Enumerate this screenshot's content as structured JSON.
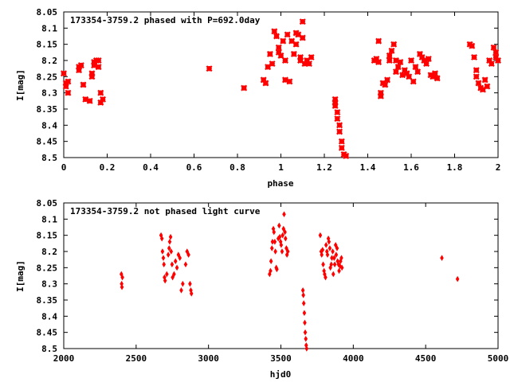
{
  "chart_data": [
    {
      "type": "scatter",
      "title": "173354-3759.2 phased with P=692.0day",
      "xlabel": "phase",
      "ylabel": "I[mag]",
      "xlim": [
        0,
        2
      ],
      "ylim": [
        8.05,
        8.5
      ],
      "y_inverted": true,
      "xticks": [
        0,
        0.2,
        0.4,
        0.6,
        0.8,
        1,
        1.2,
        1.4,
        1.6,
        1.8,
        2
      ],
      "xtick_labels": [
        "0",
        "0.2",
        "0.4",
        "0.6",
        "0.8",
        "1",
        "1.2",
        "1.4",
        "1.6",
        "1.8",
        "2"
      ],
      "yticks": [
        8.05,
        8.1,
        8.15,
        8.2,
        8.25,
        8.3,
        8.35,
        8.4,
        8.45,
        8.5
      ],
      "ytick_labels": [
        "8.05",
        "8.1",
        "8.15",
        "8.2",
        "8.25",
        "8.3",
        "8.35",
        "8.4",
        "8.45",
        "8.5"
      ],
      "grid": false,
      "marker_color": "#ff0000",
      "series": [
        {
          "points": [
            [
              0.0,
              8.24
            ],
            [
              0.01,
              8.27
            ],
            [
              0.02,
              8.265
            ],
            [
              0.01,
              8.28
            ],
            [
              0.02,
              8.3
            ],
            [
              0.07,
              8.22
            ],
            [
              0.08,
              8.215
            ],
            [
              0.07,
              8.23
            ],
            [
              0.09,
              8.275
            ],
            [
              0.1,
              8.32
            ],
            [
              0.12,
              8.325
            ],
            [
              0.13,
              8.25
            ],
            [
              0.13,
              8.24
            ],
            [
              0.14,
              8.205
            ],
            [
              0.14,
              8.215
            ],
            [
              0.15,
              8.2
            ],
            [
              0.16,
              8.2
            ],
            [
              0.16,
              8.22
            ],
            [
              0.17,
              8.3
            ],
            [
              0.17,
              8.33
            ],
            [
              0.18,
              8.32
            ],
            [
              0.67,
              8.225
            ],
            [
              0.83,
              8.285
            ],
            [
              0.92,
              8.26
            ],
            [
              0.93,
              8.27
            ],
            [
              0.94,
              8.22
            ],
            [
              0.95,
              8.18
            ],
            [
              0.96,
              8.21
            ],
            [
              0.97,
              8.11
            ],
            [
              0.98,
              8.125
            ],
            [
              0.99,
              8.16
            ],
            [
              0.99,
              8.175
            ],
            [
              1.0,
              8.185
            ],
            [
              1.01,
              8.14
            ],
            [
              1.02,
              8.2
            ],
            [
              1.02,
              8.26
            ],
            [
              1.03,
              8.12
            ],
            [
              1.04,
              8.265
            ],
            [
              1.05,
              8.14
            ],
            [
              1.06,
              8.18
            ],
            [
              1.07,
              8.115
            ],
            [
              1.07,
              8.15
            ],
            [
              1.08,
              8.12
            ],
            [
              1.09,
              8.19
            ],
            [
              1.09,
              8.2
            ],
            [
              1.1,
              8.08
            ],
            [
              1.1,
              8.13
            ],
            [
              1.11,
              8.21
            ],
            [
              1.12,
              8.2
            ],
            [
              1.13,
              8.21
            ],
            [
              1.14,
              8.19
            ],
            [
              1.25,
              8.32
            ],
            [
              1.25,
              8.33
            ],
            [
              1.25,
              8.34
            ],
            [
              1.26,
              8.36
            ],
            [
              1.26,
              8.38
            ],
            [
              1.27,
              8.4
            ],
            [
              1.27,
              8.42
            ],
            [
              1.28,
              8.45
            ],
            [
              1.28,
              8.47
            ],
            [
              1.29,
              8.49
            ],
            [
              1.3,
              8.495
            ],
            [
              1.43,
              8.2
            ],
            [
              1.44,
              8.195
            ],
            [
              1.45,
              8.14
            ],
            [
              1.45,
              8.205
            ],
            [
              1.46,
              8.31
            ],
            [
              1.46,
              8.3
            ],
            [
              1.47,
              8.27
            ],
            [
              1.48,
              8.275
            ],
            [
              1.49,
              8.26
            ],
            [
              1.5,
              8.2
            ],
            [
              1.5,
              8.185
            ],
            [
              1.51,
              8.17
            ],
            [
              1.52,
              8.15
            ],
            [
              1.53,
              8.2
            ],
            [
              1.53,
              8.235
            ],
            [
              1.54,
              8.22
            ],
            [
              1.55,
              8.205
            ],
            [
              1.56,
              8.245
            ],
            [
              1.57,
              8.23
            ],
            [
              1.58,
              8.24
            ],
            [
              1.59,
              8.25
            ],
            [
              1.6,
              8.2
            ],
            [
              1.61,
              8.265
            ],
            [
              1.62,
              8.22
            ],
            [
              1.63,
              8.235
            ],
            [
              1.64,
              8.18
            ],
            [
              1.65,
              8.19
            ],
            [
              1.66,
              8.2
            ],
            [
              1.67,
              8.21
            ],
            [
              1.68,
              8.195
            ],
            [
              1.69,
              8.245
            ],
            [
              1.7,
              8.25
            ],
            [
              1.71,
              8.24
            ],
            [
              1.72,
              8.255
            ],
            [
              1.87,
              8.15
            ],
            [
              1.88,
              8.155
            ],
            [
              1.89,
              8.19
            ],
            [
              1.9,
              8.23
            ],
            [
              1.9,
              8.25
            ],
            [
              1.91,
              8.27
            ],
            [
              1.92,
              8.285
            ],
            [
              1.93,
              8.29
            ],
            [
              1.94,
              8.26
            ],
            [
              1.95,
              8.28
            ],
            [
              1.96,
              8.2
            ],
            [
              1.97,
              8.21
            ],
            [
              1.98,
              8.16
            ],
            [
              1.99,
              8.175
            ],
            [
              1.99,
              8.19
            ],
            [
              2.0,
              8.2
            ]
          ]
        }
      ]
    },
    {
      "type": "scatter",
      "title": "173354-3759.2 not phased light curve",
      "xlabel": "hjd0",
      "ylabel": "I[mag]",
      "xlim": [
        2000,
        5000
      ],
      "ylim": [
        8.05,
        8.5
      ],
      "y_inverted": true,
      "xticks": [
        2000,
        2500,
        3000,
        3500,
        4000,
        4500,
        5000
      ],
      "xtick_labels": [
        "2000",
        "2500",
        "3000",
        "3500",
        "4000",
        "4500",
        "5000"
      ],
      "yticks": [
        8.05,
        8.1,
        8.15,
        8.2,
        8.25,
        8.3,
        8.35,
        8.4,
        8.45,
        8.5
      ],
      "ytick_labels": [
        "8.05",
        "8.1",
        "8.15",
        "8.2",
        "8.25",
        "8.3",
        "8.35",
        "8.4",
        "8.45",
        "8.5"
      ],
      "grid": false,
      "marker_color": "#ff0000",
      "series": [
        {
          "points": [
            [
              2398,
              8.27
            ],
            [
              2400,
              8.3
            ],
            [
              2402,
              8.31
            ],
            [
              2405,
              8.28
            ],
            [
              2672,
              8.15
            ],
            [
              2678,
              8.16
            ],
            [
              2682,
              8.2
            ],
            [
              2688,
              8.22
            ],
            [
              2692,
              8.24
            ],
            [
              2696,
              8.28
            ],
            [
              2700,
              8.29
            ],
            [
              2712,
              8.27
            ],
            [
              2722,
              8.21
            ],
            [
              2728,
              8.19
            ],
            [
              2732,
              8.17
            ],
            [
              2738,
              8.155
            ],
            [
              2742,
              8.2
            ],
            [
              2748,
              8.24
            ],
            [
              2752,
              8.28
            ],
            [
              2762,
              8.27
            ],
            [
              2772,
              8.23
            ],
            [
              2782,
              8.25
            ],
            [
              2792,
              8.21
            ],
            [
              2802,
              8.22
            ],
            [
              2812,
              8.32
            ],
            [
              2822,
              8.3
            ],
            [
              2842,
              8.24
            ],
            [
              2852,
              8.2
            ],
            [
              2862,
              8.21
            ],
            [
              2872,
              8.3
            ],
            [
              2878,
              8.32
            ],
            [
              2882,
              8.33
            ],
            [
              3422,
              8.27
            ],
            [
              3428,
              8.26
            ],
            [
              3432,
              8.23
            ],
            [
              3438,
              8.19
            ],
            [
              3442,
              8.17
            ],
            [
              3448,
              8.13
            ],
            [
              3452,
              8.14
            ],
            [
              3458,
              8.17
            ],
            [
              3462,
              8.2
            ],
            [
              3468,
              8.25
            ],
            [
              3472,
              8.255
            ],
            [
              3482,
              8.16
            ],
            [
              3488,
              8.12
            ],
            [
              3492,
              8.155
            ],
            [
              3498,
              8.17
            ],
            [
              3502,
              8.18
            ],
            [
              3508,
              8.2
            ],
            [
              3512,
              8.15
            ],
            [
              3518,
              8.13
            ],
            [
              3522,
              8.085
            ],
            [
              3528,
              8.14
            ],
            [
              3532,
              8.16
            ],
            [
              3538,
              8.19
            ],
            [
              3542,
              8.21
            ],
            [
              3548,
              8.2
            ],
            [
              3652,
              8.32
            ],
            [
              3655,
              8.335
            ],
            [
              3658,
              8.36
            ],
            [
              3662,
              8.39
            ],
            [
              3665,
              8.42
            ],
            [
              3668,
              8.45
            ],
            [
              3672,
              8.47
            ],
            [
              3675,
              8.49
            ],
            [
              3678,
              8.5
            ],
            [
              3772,
              8.15
            ],
            [
              3778,
              8.2
            ],
            [
              3782,
              8.21
            ],
            [
              3788,
              8.195
            ],
            [
              3792,
              8.24
            ],
            [
              3798,
              8.26
            ],
            [
              3802,
              8.27
            ],
            [
              3808,
              8.28
            ],
            [
              3812,
              8.18
            ],
            [
              3818,
              8.2
            ],
            [
              3822,
              8.21
            ],
            [
              3828,
              8.16
            ],
            [
              3832,
              8.17
            ],
            [
              3838,
              8.19
            ],
            [
              3842,
              8.25
            ],
            [
              3848,
              8.24
            ],
            [
              3852,
              8.22
            ],
            [
              3858,
              8.2
            ],
            [
              3862,
              8.27
            ],
            [
              3868,
              8.22
            ],
            [
              3872,
              8.24
            ],
            [
              3878,
              8.18
            ],
            [
              3882,
              8.21
            ],
            [
              3888,
              8.19
            ],
            [
              3892,
              8.23
            ],
            [
              3898,
              8.24
            ],
            [
              3902,
              8.26
            ],
            [
              3908,
              8.245
            ],
            [
              3912,
              8.23
            ],
            [
              3918,
              8.22
            ],
            [
              3922,
              8.25
            ],
            [
              4612,
              8.22
            ],
            [
              4720,
              8.285
            ]
          ]
        }
      ]
    }
  ],
  "panels": {
    "top": {
      "title": "173354-3759.2 phased with P=692.0day",
      "xlabel": "phase",
      "ylabel": "I[mag]"
    },
    "bottom": {
      "title": "173354-3759.2 not phased light curve",
      "xlabel": "hjd0",
      "ylabel": "I[mag]"
    }
  }
}
